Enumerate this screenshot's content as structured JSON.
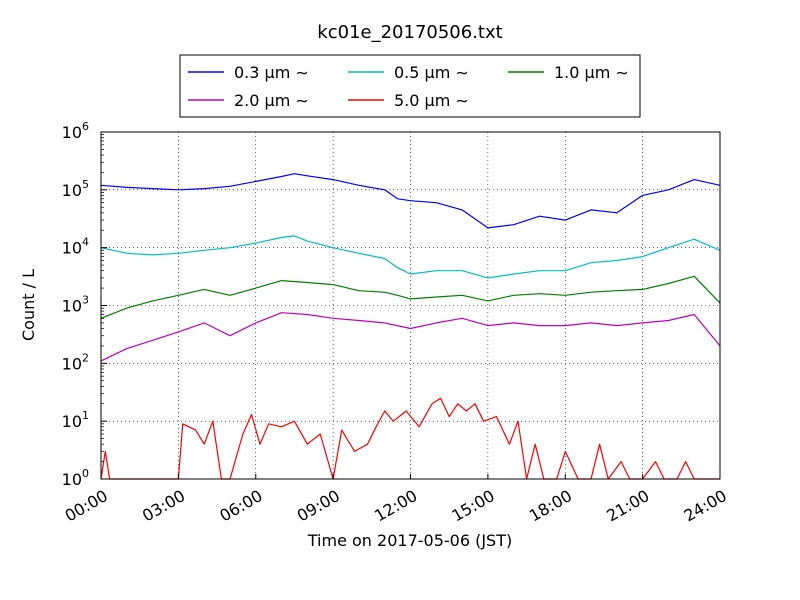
{
  "chart_data": {
    "type": "line",
    "title": "kc01e_20170506.txt",
    "xlabel": "Time on 2017-05-06 (JST)",
    "ylabel": "Count / L",
    "y_scale": "log",
    "ylim": [
      1,
      1000000
    ],
    "xlim": [
      "00:00",
      "24:00"
    ],
    "x_ticks": [
      "00:00",
      "03:00",
      "06:00",
      "09:00",
      "12:00",
      "15:00",
      "18:00",
      "21:00",
      "24:00"
    ],
    "y_ticks": [
      {
        "base": "10",
        "exp": "0"
      },
      {
        "base": "10",
        "exp": "1"
      },
      {
        "base": "10",
        "exp": "2"
      },
      {
        "base": "10",
        "exp": "3"
      },
      {
        "base": "10",
        "exp": "4"
      },
      {
        "base": "10",
        "exp": "5"
      },
      {
        "base": "10",
        "exp": "6"
      }
    ],
    "grid": true,
    "legend_position": "top-center",
    "series": [
      {
        "name": "0.3 μm ∼",
        "color": "#0000ff",
        "points": [
          [
            "00:00",
            120000
          ],
          [
            "01:00",
            110000
          ],
          [
            "02:00",
            105000
          ],
          [
            "03:00",
            100000
          ],
          [
            "04:00",
            105000
          ],
          [
            "05:00",
            115000
          ],
          [
            "06:00",
            140000
          ],
          [
            "07:00",
            170000
          ],
          [
            "07:30",
            190000
          ],
          [
            "08:00",
            175000
          ],
          [
            "09:00",
            150000
          ],
          [
            "10:00",
            120000
          ],
          [
            "11:00",
            100000
          ],
          [
            "11:30",
            70000
          ],
          [
            "12:00",
            65000
          ],
          [
            "13:00",
            60000
          ],
          [
            "14:00",
            45000
          ],
          [
            "15:00",
            22000
          ],
          [
            "16:00",
            25000
          ],
          [
            "17:00",
            35000
          ],
          [
            "18:00",
            30000
          ],
          [
            "19:00",
            45000
          ],
          [
            "20:00",
            40000
          ],
          [
            "21:00",
            80000
          ],
          [
            "22:00",
            100000
          ],
          [
            "23:00",
            150000
          ],
          [
            "24:00",
            120000
          ]
        ]
      },
      {
        "name": "0.5 μm ∼",
        "color": "#00bfbf",
        "points": [
          [
            "00:00",
            10000
          ],
          [
            "01:00",
            8000
          ],
          [
            "02:00",
            7500
          ],
          [
            "03:00",
            8000
          ],
          [
            "04:00",
            9000
          ],
          [
            "05:00",
            10000
          ],
          [
            "06:00",
            12000
          ],
          [
            "07:00",
            15000
          ],
          [
            "07:30",
            16000
          ],
          [
            "08:00",
            13000
          ],
          [
            "09:00",
            10000
          ],
          [
            "10:00",
            8000
          ],
          [
            "11:00",
            6500
          ],
          [
            "11:30",
            4500
          ],
          [
            "12:00",
            3500
          ],
          [
            "13:00",
            4000
          ],
          [
            "14:00",
            4000
          ],
          [
            "15:00",
            3000
          ],
          [
            "16:00",
            3500
          ],
          [
            "17:00",
            4000
          ],
          [
            "18:00",
            4000
          ],
          [
            "19:00",
            5500
          ],
          [
            "20:00",
            6000
          ],
          [
            "21:00",
            7000
          ],
          [
            "22:00",
            10000
          ],
          [
            "23:00",
            14000
          ],
          [
            "24:00",
            9000
          ]
        ]
      },
      {
        "name": "1.0 μm ∼",
        "color": "#008000",
        "points": [
          [
            "00:00",
            600
          ],
          [
            "01:00",
            900
          ],
          [
            "02:00",
            1200
          ],
          [
            "03:00",
            1500
          ],
          [
            "04:00",
            1900
          ],
          [
            "05:00",
            1500
          ],
          [
            "06:00",
            2000
          ],
          [
            "07:00",
            2700
          ],
          [
            "08:00",
            2500
          ],
          [
            "09:00",
            2300
          ],
          [
            "10:00",
            1800
          ],
          [
            "11:00",
            1700
          ],
          [
            "11:30",
            1500
          ],
          [
            "12:00",
            1300
          ],
          [
            "13:00",
            1400
          ],
          [
            "14:00",
            1500
          ],
          [
            "15:00",
            1200
          ],
          [
            "16:00",
            1500
          ],
          [
            "17:00",
            1600
          ],
          [
            "18:00",
            1500
          ],
          [
            "19:00",
            1700
          ],
          [
            "20:00",
            1800
          ],
          [
            "21:00",
            1900
          ],
          [
            "22:00",
            2400
          ],
          [
            "23:00",
            3200
          ],
          [
            "24:00",
            1100
          ]
        ]
      },
      {
        "name": "2.0 μm ∼",
        "color": "#bf00bf",
        "points": [
          [
            "00:00",
            110
          ],
          [
            "01:00",
            180
          ],
          [
            "02:00",
            250
          ],
          [
            "03:00",
            350
          ],
          [
            "04:00",
            500
          ],
          [
            "05:00",
            300
          ],
          [
            "06:00",
            500
          ],
          [
            "07:00",
            750
          ],
          [
            "08:00",
            700
          ],
          [
            "09:00",
            600
          ],
          [
            "10:00",
            550
          ],
          [
            "11:00",
            500
          ],
          [
            "12:00",
            400
          ],
          [
            "13:00",
            500
          ],
          [
            "14:00",
            600
          ],
          [
            "15:00",
            450
          ],
          [
            "16:00",
            500
          ],
          [
            "17:00",
            450
          ],
          [
            "18:00",
            450
          ],
          [
            "19:00",
            500
          ],
          [
            "20:00",
            450
          ],
          [
            "21:00",
            500
          ],
          [
            "22:00",
            550
          ],
          [
            "23:00",
            700
          ],
          [
            "24:00",
            200
          ]
        ]
      },
      {
        "name": "5.0 μm ∼",
        "color": "#ff0000",
        "points": [
          [
            "00:00",
            1
          ],
          [
            "00:10",
            3
          ],
          [
            "00:20",
            1
          ],
          [
            "03:00",
            1
          ],
          [
            "03:10",
            9
          ],
          [
            "03:40",
            7
          ],
          [
            "04:00",
            4
          ],
          [
            "04:20",
            10
          ],
          [
            "04:40",
            1
          ],
          [
            "05:00",
            1
          ],
          [
            "05:30",
            6
          ],
          [
            "05:50",
            13
          ],
          [
            "06:10",
            4
          ],
          [
            "06:30",
            9
          ],
          [
            "07:00",
            8
          ],
          [
            "07:30",
            10
          ],
          [
            "08:00",
            4
          ],
          [
            "08:30",
            6
          ],
          [
            "09:00",
            1
          ],
          [
            "09:20",
            7
          ],
          [
            "09:50",
            3
          ],
          [
            "10:20",
            4
          ],
          [
            "10:40",
            8
          ],
          [
            "11:00",
            15
          ],
          [
            "11:20",
            10
          ],
          [
            "11:50",
            15
          ],
          [
            "12:20",
            8
          ],
          [
            "12:50",
            20
          ],
          [
            "13:10",
            25
          ],
          [
            "13:30",
            12
          ],
          [
            "13:50",
            20
          ],
          [
            "14:10",
            15
          ],
          [
            "14:30",
            20
          ],
          [
            "14:50",
            10
          ],
          [
            "15:20",
            12
          ],
          [
            "15:50",
            4
          ],
          [
            "16:10",
            10
          ],
          [
            "16:30",
            1
          ],
          [
            "16:50",
            4
          ],
          [
            "17:10",
            1
          ],
          [
            "17:40",
            1
          ],
          [
            "18:00",
            3
          ],
          [
            "18:30",
            1
          ],
          [
            "19:00",
            1
          ],
          [
            "19:20",
            4
          ],
          [
            "19:40",
            1
          ],
          [
            "20:10",
            2
          ],
          [
            "20:30",
            1
          ],
          [
            "21:00",
            1
          ],
          [
            "21:30",
            2
          ],
          [
            "21:50",
            1
          ],
          [
            "22:20",
            1
          ],
          [
            "22:40",
            2
          ],
          [
            "23:00",
            1
          ],
          [
            "23:30",
            1
          ],
          [
            "24:00",
            1
          ]
        ]
      }
    ]
  }
}
